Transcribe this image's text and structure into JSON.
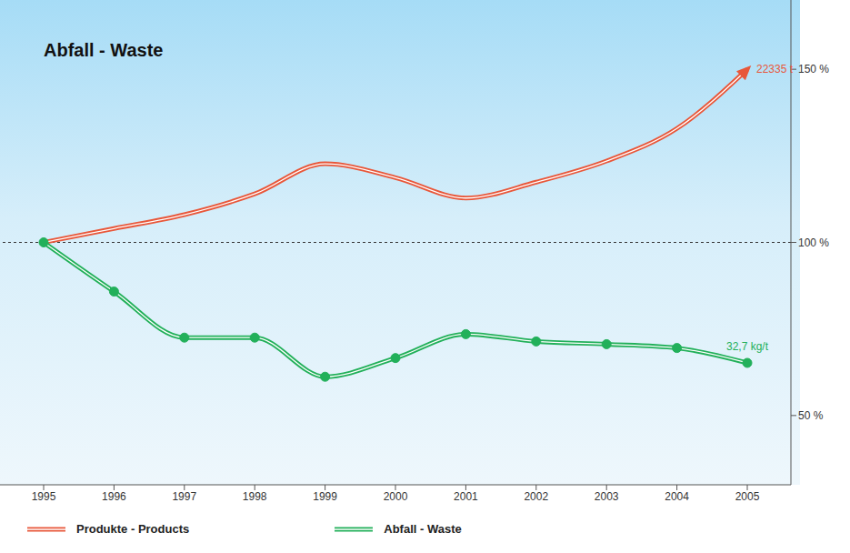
{
  "chart_data": {
    "type": "line",
    "title": "Abfall - Waste",
    "categories": [
      "1995",
      "1996",
      "1997",
      "1998",
      "1999",
      "2000",
      "2001",
      "2002",
      "2003",
      "2004",
      "2005"
    ],
    "series": [
      {
        "name": "Produkte - Products",
        "color": "#e8573a",
        "marker": "none",
        "line_style": "solid",
        "end_label": "22335 t",
        "values": [
          100,
          104,
          108,
          114,
          122.7,
          118.7,
          112.8,
          117.4,
          123.5,
          132.9,
          150
        ]
      },
      {
        "name": "Abfall - Waste",
        "color": "#22b05a",
        "marker": "circle",
        "line_style": "solid",
        "end_label": "32,7 kg/t",
        "values": [
          100,
          85.8,
          72.5,
          72.5,
          61.2,
          66.6,
          73.5,
          71.4,
          70.6,
          69.5,
          65.2
        ]
      }
    ],
    "baseline": 100,
    "ylim": [
      30,
      170
    ],
    "yticks": [
      {
        "value": 50,
        "label": "50 %"
      },
      {
        "value": 100,
        "label": "100 %"
      },
      {
        "value": 150,
        "label": "150 %"
      }
    ],
    "grid": false,
    "legend": "bottom"
  }
}
